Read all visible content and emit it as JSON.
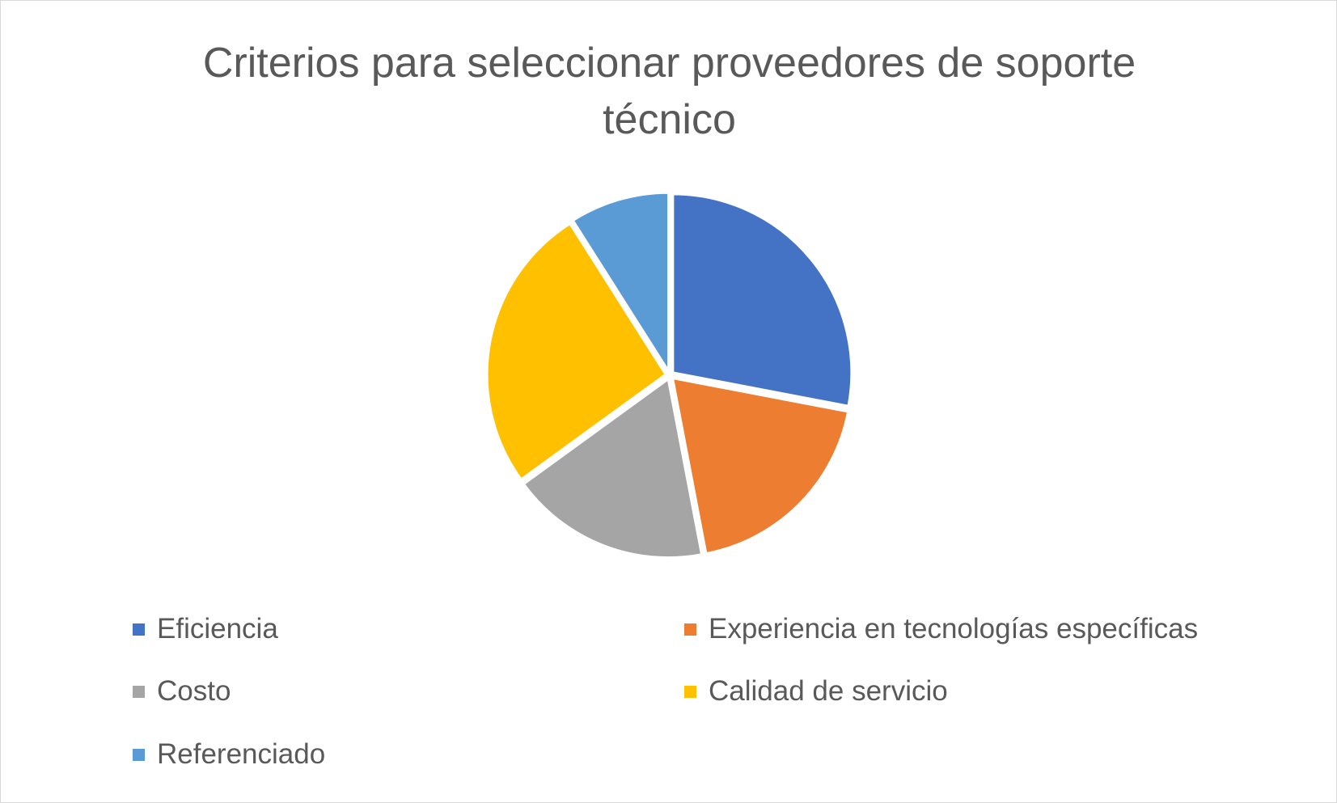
{
  "chart_data": {
    "type": "pie",
    "title": "Criterios para seleccionar proveedores de soporte técnico",
    "categories": [
      "Eficiencia",
      "Experiencia en tecnologías específicas",
      "Costo",
      "Calidad de servicio",
      "Referenciado"
    ],
    "values": [
      28,
      19,
      18,
      26,
      9
    ],
    "colors": [
      "#4472C4",
      "#ED7D31",
      "#A5A5A5",
      "#FFC000",
      "#5B9BD5"
    ],
    "legend_position": "bottom",
    "start_angle": "12 o'clock",
    "direction": "clockwise"
  }
}
